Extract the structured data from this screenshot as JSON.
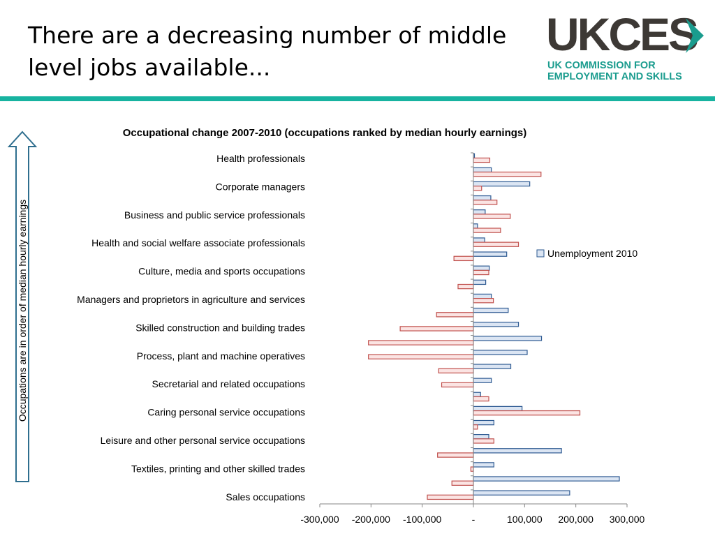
{
  "slide": {
    "title": "There are a decreasing number of middle level jobs available..."
  },
  "logo": {
    "wordmark": "UKCES",
    "line1": "UK COMMISSION FOR",
    "line2": "EMPLOYMENT AND SKILLS",
    "color_dark": "#3d3935",
    "color_accent": "#1a9c8e"
  },
  "side_label": "Occupations are in order of median hourly earnings",
  "colors": {
    "divider": "#18b3a0",
    "series_blue_fill": "#dbe5f3",
    "series_blue_stroke": "#2e5a92",
    "series_red_fill": "#fbe4e3",
    "series_red_stroke": "#c0504d"
  },
  "chart_data": {
    "type": "bar",
    "orientation": "horizontal",
    "title": "Occupational change 2007-2010 (occupations ranked by median hourly earnings)",
    "xlim": [
      -300000,
      300000
    ],
    "x_ticks": [
      -300000,
      -200000,
      -100000,
      0,
      100000,
      200000,
      300000
    ],
    "x_tick_labels": [
      "-300,000",
      "-200,000",
      "-100,000",
      "-",
      "100,000",
      "200,000",
      "300,000"
    ],
    "category_labels": [
      "Health professionals",
      "Corporate managers",
      "Business and public service professionals",
      "Health and social welfare associate professionals",
      "Culture, media and sports occupations",
      "Managers and proprietors in agriculture and services",
      "Skilled construction and building trades",
      "Process, plant and machine operatives",
      "Secretarial and related occupations",
      "Caring personal service occupations",
      "Leisure and other personal service occupations",
      "Textiles, printing and other skilled trades",
      "Sales occupations"
    ],
    "rows": [
      {
        "blue": 2000,
        "red": 32000
      },
      {
        "blue": 35000,
        "red": 132000
      },
      {
        "blue": 110000,
        "red": 16000
      },
      {
        "blue": 34000,
        "red": 46000
      },
      {
        "blue": 23000,
        "red": 72000
      },
      {
        "blue": 8000,
        "red": 53000
      },
      {
        "blue": 22000,
        "red": 88000
      },
      {
        "blue": 65000,
        "red": -38000
      },
      {
        "blue": 31000,
        "red": 30000
      },
      {
        "blue": 24000,
        "red": -30000
      },
      {
        "blue": 35000,
        "red": 39000
      },
      {
        "blue": 68000,
        "red": -72000
      },
      {
        "blue": 88000,
        "red": -143000
      },
      {
        "blue": 133000,
        "red": -205000
      },
      {
        "blue": 105000,
        "red": -205000
      },
      {
        "blue": 73000,
        "red": -68000
      },
      {
        "blue": 35000,
        "red": -62000
      },
      {
        "blue": 14000,
        "red": 30000
      },
      {
        "blue": 95000,
        "red": 208000
      },
      {
        "blue": 40000,
        "red": 8000
      },
      {
        "blue": 30000,
        "red": 40000
      },
      {
        "blue": 172000,
        "red": -70000
      },
      {
        "blue": 40000,
        "red": -5000
      },
      {
        "blue": 285000,
        "red": -42000
      },
      {
        "blue": 188000,
        "red": -90000
      }
    ],
    "legend": {
      "entries": [
        "Unemployment 2010"
      ],
      "position": "right"
    },
    "grid": false
  }
}
